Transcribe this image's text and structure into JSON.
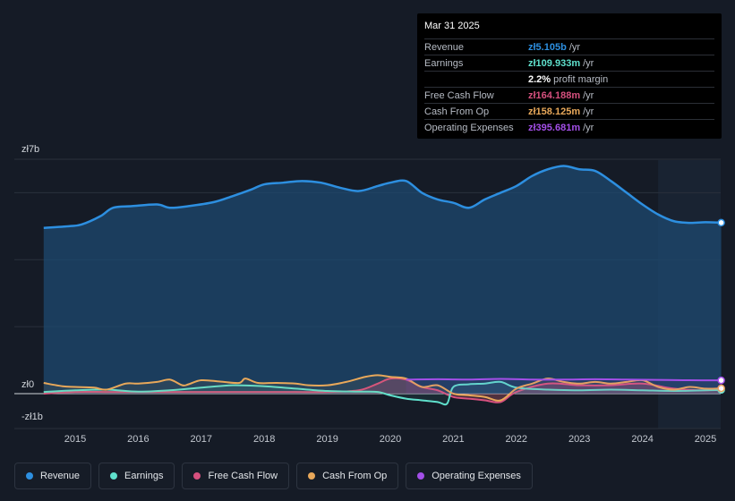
{
  "tooltip": {
    "date": "Mar 31 2025",
    "rows": [
      {
        "label": "Revenue",
        "value": "zł5.105b",
        "unit": "/yr",
        "color": "#2d8fe0"
      },
      {
        "label": "Earnings",
        "value": "zł109.933m",
        "unit": "/yr",
        "color": "#5fe0cc"
      },
      {
        "label": "",
        "value": "2.2%",
        "unit": "profit margin",
        "color": "#ffffff"
      },
      {
        "label": "Free Cash Flow",
        "value": "zł164.188m",
        "unit": "/yr",
        "color": "#d6507e"
      },
      {
        "label": "Cash From Op",
        "value": "zł158.125m",
        "unit": "/yr",
        "color": "#e8a85a"
      },
      {
        "label": "Operating Expenses",
        "value": "zł395.681m",
        "unit": "/yr",
        "color": "#a34fe8"
      }
    ]
  },
  "legend": [
    {
      "label": "Revenue",
      "color": "#2d8fe0",
      "icon": "dot-icon"
    },
    {
      "label": "Earnings",
      "color": "#5fe0cc",
      "icon": "dot-icon"
    },
    {
      "label": "Free Cash Flow",
      "color": "#d6507e",
      "icon": "dot-icon"
    },
    {
      "label": "Cash From Op",
      "color": "#e8a85a",
      "icon": "dot-icon"
    },
    {
      "label": "Operating Expenses",
      "color": "#a34fe8",
      "icon": "dot-icon"
    }
  ],
  "chart_data": {
    "type": "area",
    "unit": "zł billions",
    "y_tick_labels": [
      "zł7b",
      "zł0",
      "-zł1b"
    ],
    "ylim": [
      -1,
      7
    ],
    "xlim": [
      2014.4,
      2025.25
    ],
    "forecast_from": 2024.25,
    "x_tick_labels": [
      "2015",
      "2016",
      "2017",
      "2018",
      "2019",
      "2020",
      "2021",
      "2022",
      "2023",
      "2024",
      "2025"
    ],
    "series": [
      {
        "name": "Revenue",
        "color": "#2d8fe0",
        "x": [
          2014.5,
          2014.9,
          2015.1,
          2015.4,
          2015.6,
          2015.9,
          2016.3,
          2016.5,
          2016.8,
          2017.2,
          2017.5,
          2017.8,
          2018.0,
          2018.3,
          2018.6,
          2018.9,
          2019.2,
          2019.5,
          2019.8,
          2020.0,
          2020.25,
          2020.5,
          2020.75,
          2021.0,
          2021.25,
          2021.5,
          2021.75,
          2022.0,
          2022.25,
          2022.5,
          2022.75,
          2023.0,
          2023.25,
          2023.5,
          2023.75,
          2024.0,
          2024.25,
          2024.5,
          2024.75,
          2025.0,
          2025.25
        ],
        "values": [
          4.95,
          5.0,
          5.05,
          5.3,
          5.55,
          5.6,
          5.65,
          5.55,
          5.6,
          5.72,
          5.9,
          6.1,
          6.25,
          6.3,
          6.35,
          6.3,
          6.15,
          6.05,
          6.2,
          6.3,
          6.35,
          6.0,
          5.8,
          5.7,
          5.55,
          5.8,
          6.0,
          6.2,
          6.5,
          6.7,
          6.8,
          6.7,
          6.65,
          6.35,
          6.0,
          5.65,
          5.35,
          5.15,
          5.1,
          5.12,
          5.105
        ]
      },
      {
        "name": "Earnings",
        "color": "#5fe0cc",
        "x": [
          2014.5,
          2015.0,
          2015.5,
          2016.0,
          2016.5,
          2017.0,
          2017.5,
          2018.0,
          2018.5,
          2019.0,
          2019.5,
          2019.8,
          2020.0,
          2020.25,
          2020.5,
          2020.75,
          2020.9,
          2021.0,
          2021.25,
          2021.5,
          2021.75,
          2022.0,
          2022.5,
          2023.0,
          2023.5,
          2024.0,
          2024.5,
          2025.0,
          2025.25
        ],
        "values": [
          0.05,
          0.1,
          0.12,
          0.06,
          0.1,
          0.18,
          0.25,
          0.22,
          0.15,
          0.08,
          0.06,
          0.05,
          -0.05,
          -0.15,
          -0.2,
          -0.25,
          -0.3,
          0.2,
          0.28,
          0.3,
          0.35,
          0.18,
          0.12,
          0.1,
          0.12,
          0.1,
          0.08,
          0.1,
          0.11
        ]
      },
      {
        "name": "Free Cash Flow",
        "color": "#d6507e",
        "fill": true,
        "x": [
          2014.5,
          2015.0,
          2015.5,
          2016.0,
          2016.5,
          2017.0,
          2017.5,
          2018.0,
          2018.5,
          2019.0,
          2019.5,
          2019.8,
          2020.0,
          2020.25,
          2020.5,
          2020.75,
          2021.0,
          2021.25,
          2021.5,
          2021.75,
          2022.0,
          2022.5,
          2023.0,
          2023.5,
          2024.0,
          2024.5,
          2025.0,
          2025.25
        ],
        "values": [
          0.0,
          0.05,
          0.05,
          0.05,
          0.05,
          0.05,
          0.05,
          0.05,
          0.05,
          0.05,
          0.1,
          0.3,
          0.45,
          0.42,
          0.2,
          0.1,
          -0.1,
          -0.15,
          -0.2,
          -0.25,
          0.05,
          0.3,
          0.25,
          0.25,
          0.3,
          0.15,
          0.1,
          0.164
        ]
      },
      {
        "name": "Cash From Op",
        "color": "#e8a85a",
        "x": [
          2014.5,
          2014.8,
          2015.0,
          2015.3,
          2015.5,
          2015.8,
          2016.0,
          2016.3,
          2016.5,
          2016.7,
          2016.8,
          2017.0,
          2017.3,
          2017.6,
          2017.7,
          2017.9,
          2018.2,
          2018.5,
          2018.7,
          2019.0,
          2019.3,
          2019.6,
          2019.8,
          2020.0,
          2020.25,
          2020.5,
          2020.75,
          2021.0,
          2021.25,
          2021.5,
          2021.75,
          2022.0,
          2022.25,
          2022.5,
          2022.75,
          2023.0,
          2023.25,
          2023.5,
          2023.75,
          2024.0,
          2024.25,
          2024.5,
          2024.75,
          2025.0,
          2025.25
        ],
        "values": [
          0.32,
          0.22,
          0.2,
          0.18,
          0.12,
          0.3,
          0.3,
          0.35,
          0.42,
          0.25,
          0.28,
          0.4,
          0.36,
          0.32,
          0.45,
          0.32,
          0.32,
          0.3,
          0.25,
          0.25,
          0.35,
          0.5,
          0.55,
          0.5,
          0.45,
          0.2,
          0.25,
          0.0,
          -0.05,
          -0.1,
          -0.2,
          0.15,
          0.3,
          0.45,
          0.35,
          0.3,
          0.35,
          0.3,
          0.35,
          0.4,
          0.2,
          0.12,
          0.2,
          0.15,
          0.158
        ]
      },
      {
        "name": "Operating Expenses",
        "color": "#a34fe8",
        "x": [
          2020.25,
          2020.75,
          2021.25,
          2021.75,
          2022.25,
          2022.75,
          2023.25,
          2023.75,
          2024.25,
          2024.75,
          2025.25
        ],
        "values": [
          0.42,
          0.43,
          0.42,
          0.44,
          0.42,
          0.42,
          0.43,
          0.42,
          0.41,
          0.4,
          0.396
        ]
      }
    ]
  }
}
